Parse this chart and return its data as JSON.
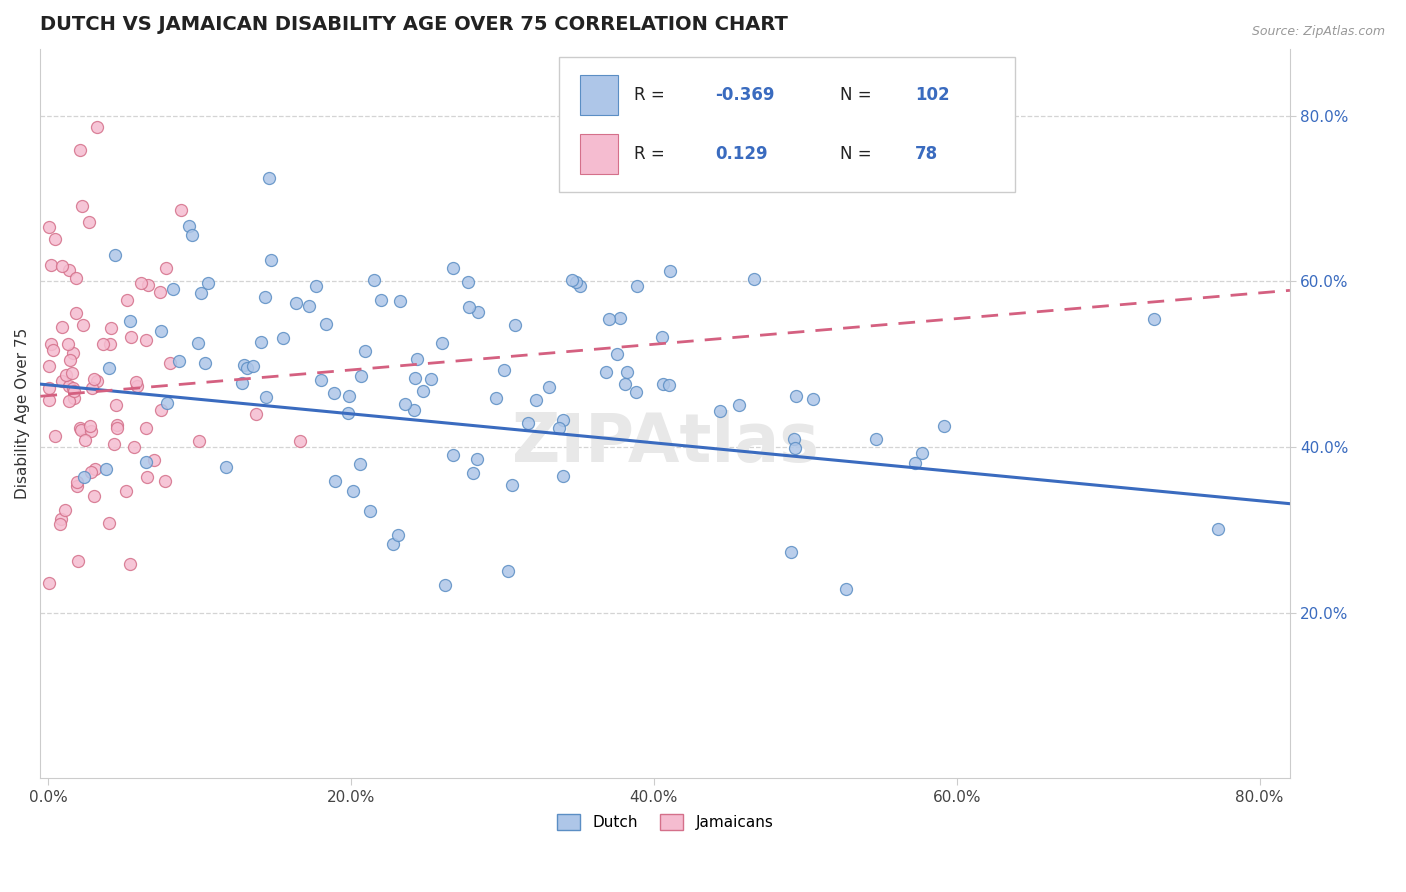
{
  "title": "DUTCH VS JAMAICAN DISABILITY AGE OVER 75 CORRELATION CHART",
  "source_text": "Source: ZipAtlas.com",
  "ylabel": "Disability Age Over 75",
  "xlim": [
    -0.005,
    0.82
  ],
  "ylim": [
    0.0,
    0.88
  ],
  "xticks": [
    0.0,
    0.2,
    0.4,
    0.6,
    0.8
  ],
  "yticks": [
    0.2,
    0.4,
    0.6,
    0.8
  ],
  "ytick_labels": [
    "20.0%",
    "40.0%",
    "60.0%",
    "80.0%"
  ],
  "xtick_labels": [
    "0.0%",
    "20.0%",
    "40.0%",
    "60.0%",
    "80.0%"
  ],
  "dutch_color": "#aec6e8",
  "dutch_edge_color": "#5b8ec4",
  "jamaican_color": "#f5bcd0",
  "jamaican_edge_color": "#d4708a",
  "dutch_R": -0.369,
  "dutch_N": 102,
  "jamaican_R": 0.129,
  "jamaican_N": 78,
  "dutch_line_color": "#3a6bbf",
  "jamaican_line_color": "#d46080",
  "watermark": "ZIPAtlas",
  "background_color": "#ffffff",
  "grid_color": "#d0d0d0",
  "title_color": "#222222",
  "title_fontsize": 14,
  "axis_label_fontsize": 11,
  "tick_fontsize": 11,
  "right_tick_color": "#3a6bbf",
  "marker_size": 75,
  "dutch_seed": 42,
  "jamaican_seed": 7
}
